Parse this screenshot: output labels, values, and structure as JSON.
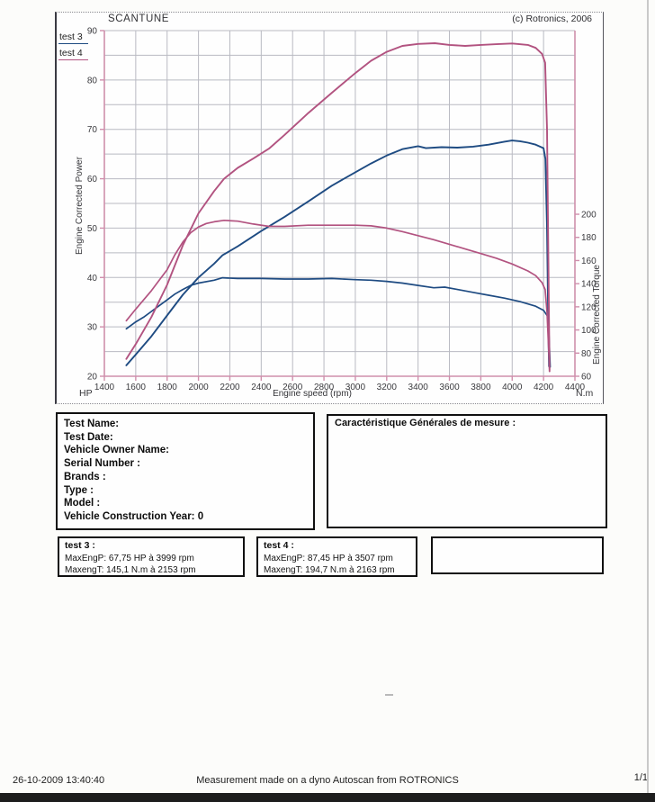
{
  "page": {
    "copyright": "(c) Rotronics, 2006",
    "footer": {
      "datetime": "26-10-2009 13:40:40",
      "center": "Measurement made on a dyno Autoscan  from ROTRONICS",
      "page_num": "1/1"
    }
  },
  "chart_data": {
    "type": "line",
    "title": "SCANTUNE",
    "xlabel": "Engine speed (rpm)",
    "ylabel_left": "Engine Corrected Power",
    "ylabel_right": "Engine Corrected Torque",
    "left_unit": "HP",
    "right_unit": "N.m",
    "xlim": [
      1400,
      4400
    ],
    "ylim_left": [
      20,
      90
    ],
    "ylim_right": [
      60,
      358.7
    ],
    "x_ticks": [
      1400,
      1600,
      1800,
      2000,
      2200,
      2400,
      2600,
      2800,
      3000,
      3200,
      3400,
      3600,
      3800,
      4000,
      4200,
      4400
    ],
    "left_ticks": [
      20,
      30,
      40,
      50,
      60,
      70,
      80,
      90
    ],
    "right_ticks": [
      60,
      80,
      100,
      120,
      140,
      160,
      180,
      200
    ],
    "grid_minor_step_left": 5,
    "legend": [
      "test 3",
      "test 4"
    ],
    "colors": {
      "frame": "#cf8fac",
      "grid": "#b9bac2",
      "test3": "#1e4b82",
      "test4": "#b25380"
    },
    "series": [
      {
        "name": "test 3",
        "color": "#1e4b82",
        "max_power": {
          "value": 67.75,
          "rpm": 3999
        },
        "max_torque": {
          "value": 145.1,
          "rpm": 2153
        },
        "power_hp": [
          [
            1540,
            22.2
          ],
          [
            1600,
            24.4
          ],
          [
            1700,
            28.1
          ],
          [
            1800,
            32.3
          ],
          [
            1900,
            36.5
          ],
          [
            2000,
            40
          ],
          [
            2100,
            42.8
          ],
          [
            2153,
            44.5
          ],
          [
            2250,
            46.3
          ],
          [
            2400,
            49.4
          ],
          [
            2550,
            52.3
          ],
          [
            2700,
            55.4
          ],
          [
            2850,
            58.6
          ],
          [
            3000,
            61.3
          ],
          [
            3100,
            63.1
          ],
          [
            3200,
            64.7
          ],
          [
            3300,
            66
          ],
          [
            3400,
            66.6
          ],
          [
            3450,
            66.2
          ],
          [
            3550,
            66.4
          ],
          [
            3650,
            66.3
          ],
          [
            3750,
            66.5
          ],
          [
            3850,
            66.9
          ],
          [
            3950,
            67.5
          ],
          [
            3999,
            67.75
          ],
          [
            4050,
            67.6
          ],
          [
            4100,
            67.3
          ],
          [
            4150,
            66.9
          ],
          [
            4200,
            66.2
          ],
          [
            4212,
            64
          ],
          [
            4222,
            50
          ],
          [
            4230,
            30
          ],
          [
            4235,
            22
          ]
        ],
        "torque_nm": [
          [
            1540,
            101
          ],
          [
            1600,
            107
          ],
          [
            1650,
            111
          ],
          [
            1700,
            116
          ],
          [
            1750,
            121
          ],
          [
            1800,
            126
          ],
          [
            1850,
            131
          ],
          [
            1900,
            135
          ],
          [
            1950,
            138.5
          ],
          [
            2000,
            140.5
          ],
          [
            2100,
            143
          ],
          [
            2153,
            145.1
          ],
          [
            2250,
            144.5
          ],
          [
            2400,
            144.5
          ],
          [
            2550,
            144
          ],
          [
            2700,
            144
          ],
          [
            2850,
            144.5
          ],
          [
            3000,
            143.5
          ],
          [
            3100,
            143
          ],
          [
            3200,
            142
          ],
          [
            3300,
            140.5
          ],
          [
            3400,
            138.5
          ],
          [
            3500,
            136.5
          ],
          [
            3570,
            137
          ],
          [
            3650,
            135
          ],
          [
            3750,
            132.5
          ],
          [
            3850,
            130
          ],
          [
            3950,
            127.5
          ],
          [
            4050,
            124.5
          ],
          [
            4150,
            120.5
          ],
          [
            4200,
            117
          ],
          [
            4225,
            112
          ],
          [
            4235,
            95
          ],
          [
            4242,
            68
          ]
        ]
      },
      {
        "name": "test 4",
        "color": "#b25380",
        "max_power": {
          "value": 87.45,
          "rpm": 3507
        },
        "max_torque": {
          "value": 194.7,
          "rpm": 2163
        },
        "power_hp": [
          [
            1540,
            23.5
          ],
          [
            1600,
            26.5
          ],
          [
            1700,
            32
          ],
          [
            1800,
            38.5
          ],
          [
            1900,
            46.5
          ],
          [
            2000,
            53
          ],
          [
            2100,
            57.5
          ],
          [
            2163,
            60
          ],
          [
            2250,
            62.2
          ],
          [
            2350,
            64.1
          ],
          [
            2450,
            66.1
          ],
          [
            2550,
            68.9
          ],
          [
            2700,
            73.3
          ],
          [
            2850,
            77.4
          ],
          [
            3000,
            81.4
          ],
          [
            3100,
            83.9
          ],
          [
            3200,
            85.7
          ],
          [
            3300,
            86.9
          ],
          [
            3400,
            87.3
          ],
          [
            3507,
            87.45
          ],
          [
            3600,
            87.1
          ],
          [
            3700,
            86.9
          ],
          [
            3800,
            87.1
          ],
          [
            3900,
            87.25
          ],
          [
            4000,
            87.4
          ],
          [
            4100,
            87.1
          ],
          [
            4150,
            86.5
          ],
          [
            4190,
            85.3
          ],
          [
            4210,
            83.5
          ],
          [
            4222,
            70
          ],
          [
            4232,
            40
          ],
          [
            4238,
            21
          ]
        ],
        "torque_nm": [
          [
            1540,
            108
          ],
          [
            1600,
            118
          ],
          [
            1650,
            126
          ],
          [
            1700,
            134
          ],
          [
            1750,
            143
          ],
          [
            1800,
            152
          ],
          [
            1850,
            165
          ],
          [
            1900,
            176
          ],
          [
            1950,
            184
          ],
          [
            2000,
            189
          ],
          [
            2050,
            192
          ],
          [
            2100,
            193.5
          ],
          [
            2163,
            194.7
          ],
          [
            2250,
            194
          ],
          [
            2350,
            191.5
          ],
          [
            2450,
            189.5
          ],
          [
            2550,
            189.5
          ],
          [
            2700,
            190.5
          ],
          [
            2850,
            190.5
          ],
          [
            3000,
            190.5
          ],
          [
            3100,
            190
          ],
          [
            3200,
            188
          ],
          [
            3300,
            185
          ],
          [
            3400,
            181.5
          ],
          [
            3500,
            178
          ],
          [
            3600,
            174
          ],
          [
            3700,
            170
          ],
          [
            3800,
            166
          ],
          [
            3900,
            162
          ],
          [
            4000,
            157
          ],
          [
            4100,
            151
          ],
          [
            4150,
            147
          ],
          [
            4190,
            141
          ],
          [
            4210,
            135
          ],
          [
            4222,
            115
          ],
          [
            4232,
            85
          ],
          [
            4238,
            66
          ]
        ]
      }
    ]
  },
  "info_box": {
    "lines": [
      "Test Name:",
      "Test Date:",
      "Vehicle Owner Name:",
      "Serial Number  :",
      "Brands  :",
      "Type  :",
      "Model  :",
      "Vehicle Construction Year: 0"
    ]
  },
  "measure_box": {
    "title": "Caractéristique Générales de mesure :"
  },
  "result_boxes": [
    {
      "title": "test 3 :",
      "lines": [
        "MaxEngP: 67,75 HP à 3999 rpm",
        "MaxengT: 145,1 N.m à 2153 rpm"
      ]
    },
    {
      "title": "test 4 :",
      "lines": [
        "MaxEngP: 87,45 HP à 3507 rpm",
        "MaxengT: 194,7 N.m à 2163 rpm"
      ]
    }
  ]
}
